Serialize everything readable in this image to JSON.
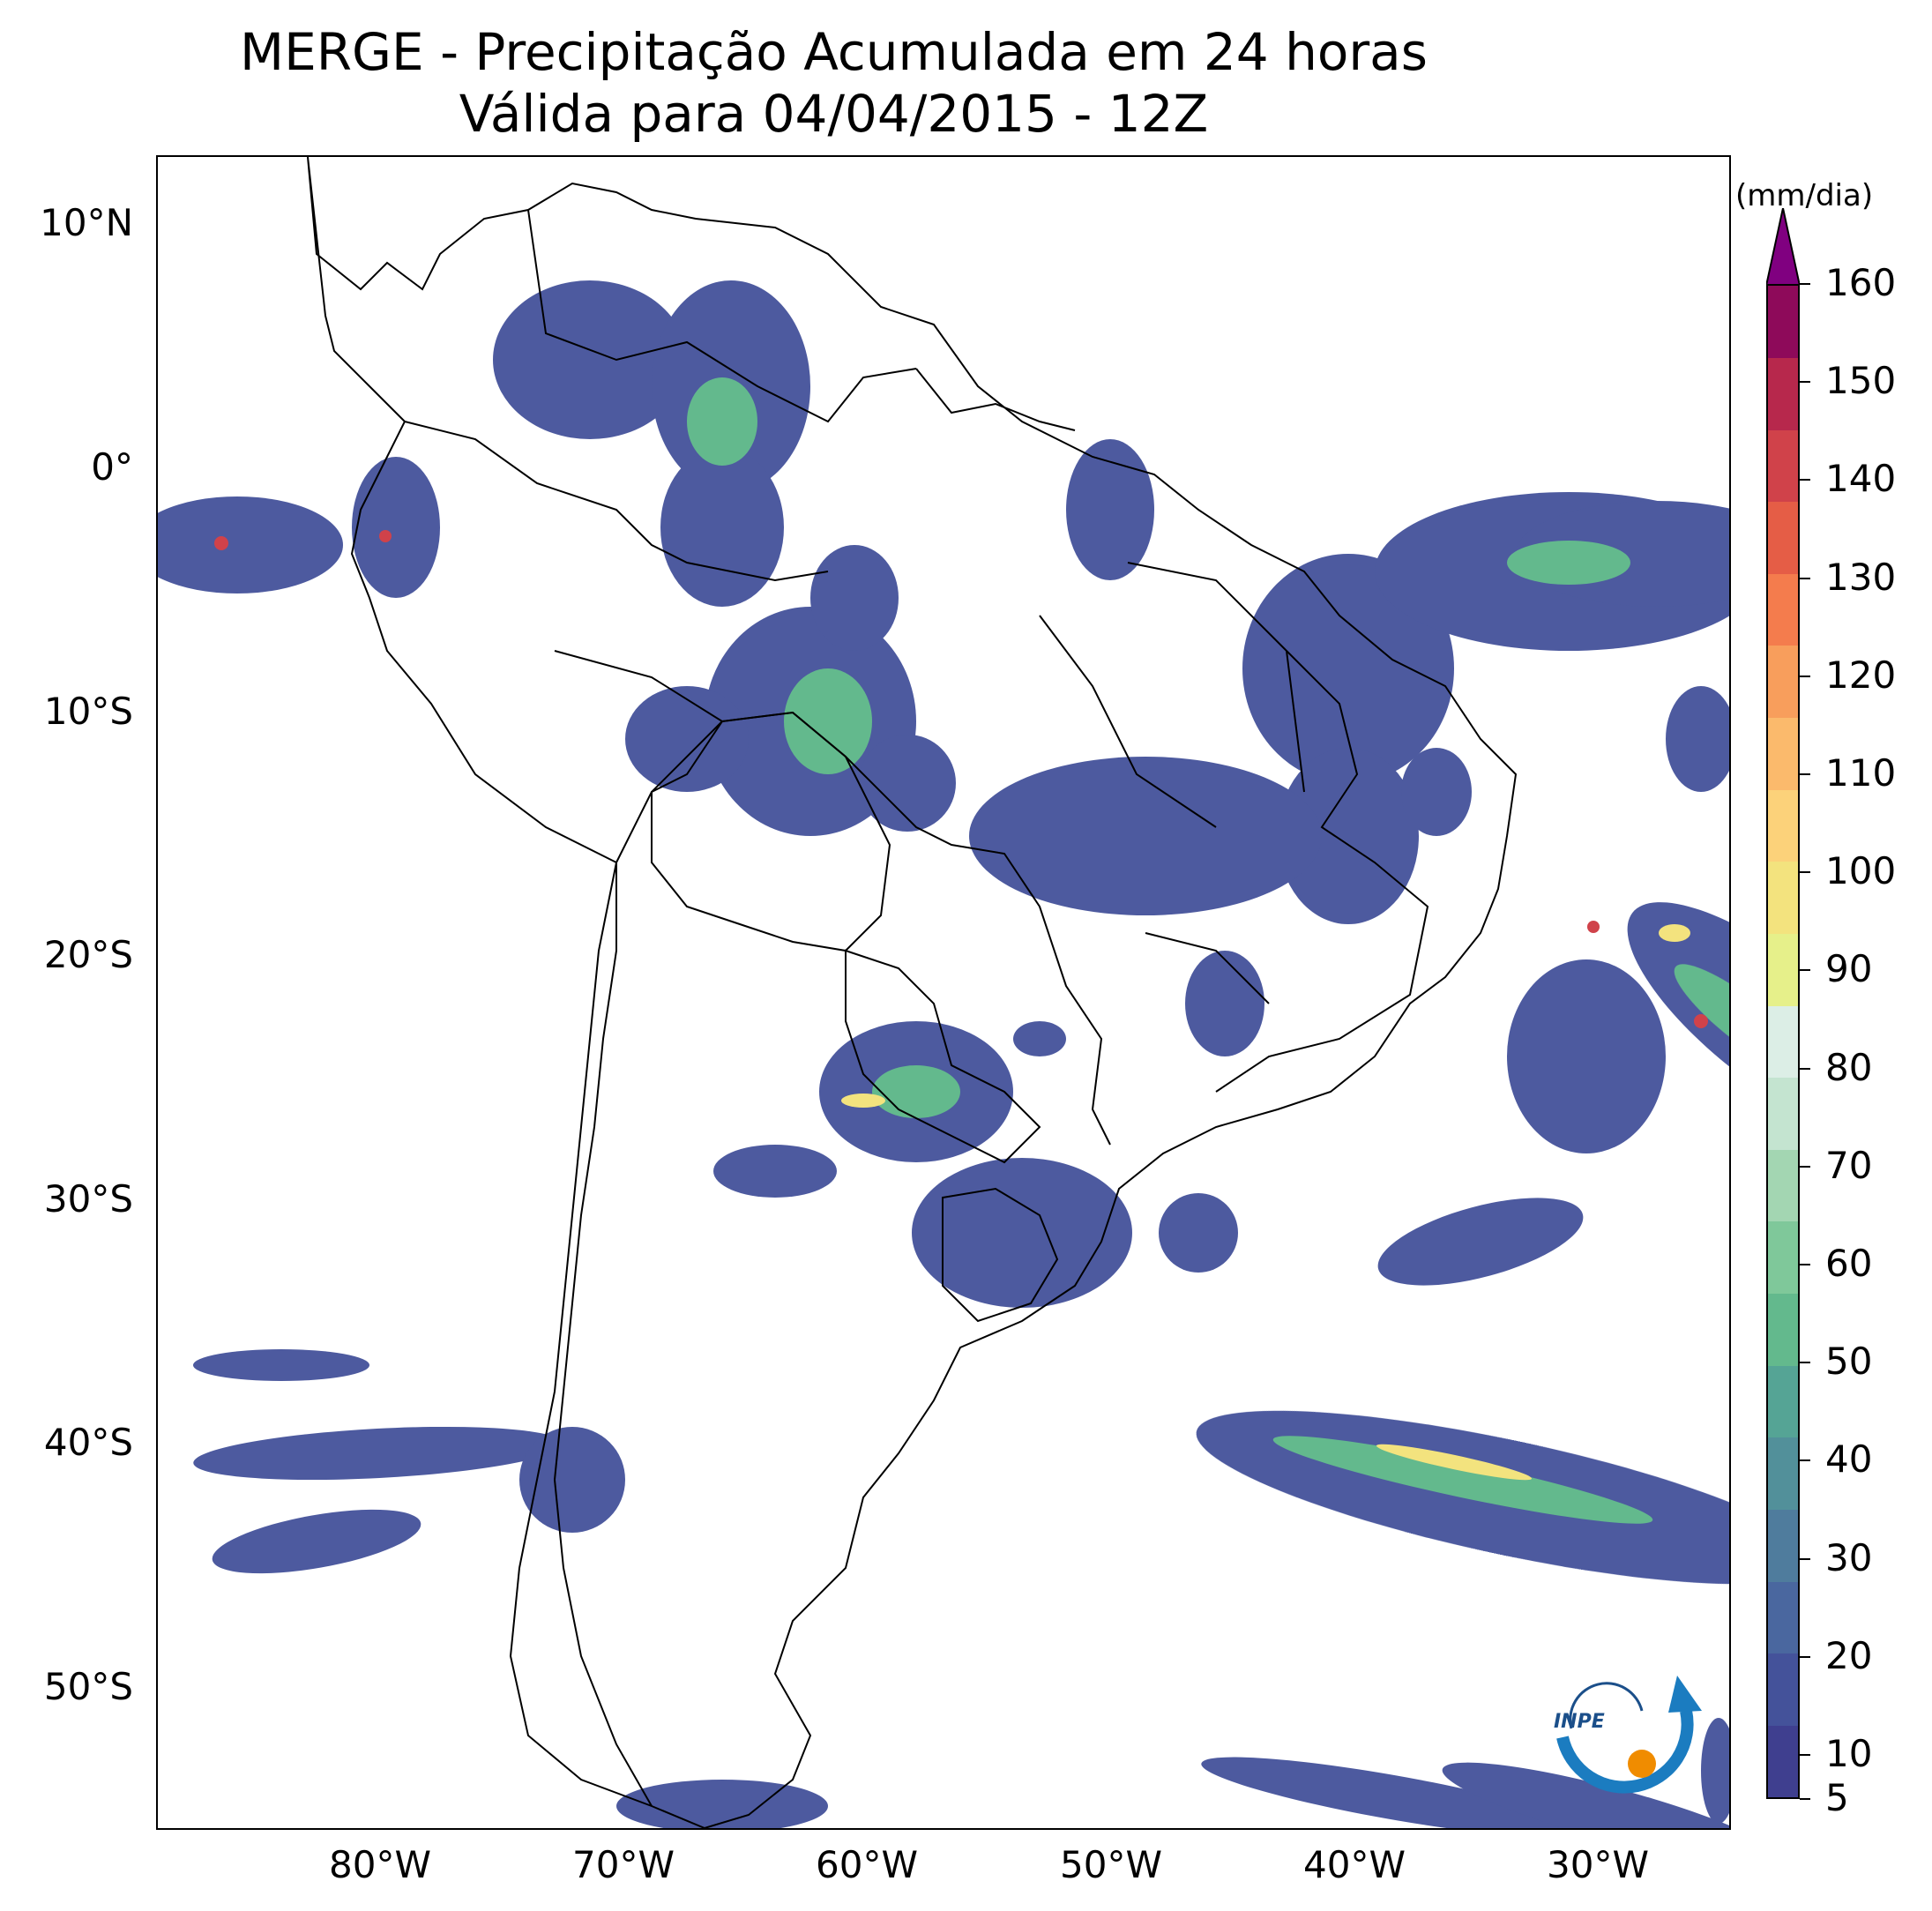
{
  "title": {
    "line1": "MERGE - Precipitação Acumulada em 24 horas",
    "line2": "Válida para 04/04/2015 - 12Z"
  },
  "axes": {
    "lat_labels": [
      "10°N",
      "0°",
      "10°S",
      "20°S",
      "30°S",
      "40°S",
      "50°S"
    ],
    "lon_labels": [
      "80°W",
      "70°W",
      "60°W",
      "50°W",
      "40°W",
      "30°W"
    ]
  },
  "colorbar": {
    "units": "(mm/dia)",
    "tick_labels": [
      "5",
      "10",
      "20",
      "30",
      "40",
      "50",
      "60",
      "70",
      "80",
      "90",
      "100",
      "110",
      "120",
      "130",
      "140",
      "150",
      "160"
    ],
    "colors": [
      "#3f3f8f",
      "#44529a",
      "#4a679f",
      "#4f7c9d",
      "#52909a",
      "#55a495",
      "#63b98d",
      "#7fc89a",
      "#a3d6b2",
      "#c4e4d0",
      "#dceee6",
      "#e6f08a",
      "#f3e37e",
      "#fcd27a",
      "#fbba6c",
      "#f89e5c",
      "#f47c4d",
      "#e55d46",
      "#d0424a",
      "#b7284c",
      "#8e0a5a"
    ],
    "extend_color": "#800080"
  },
  "logo": {
    "text": "INPE"
  }
}
